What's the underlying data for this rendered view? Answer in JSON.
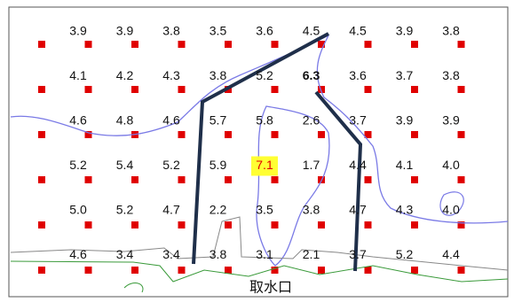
{
  "grid": {
    "rows": [
      [
        "3.9",
        "3.9",
        "3.8",
        "3.5",
        "3.6",
        "4.5",
        "4.5",
        "3.9",
        "3.8"
      ],
      [
        "4.1",
        "4.2",
        "4.3",
        "3.8",
        "5.2",
        "6.3",
        "3.6",
        "3.7",
        "3.8"
      ],
      [
        "4.6",
        "4.8",
        "4.6",
        "5.7",
        "5.8",
        "2.6",
        "3.7",
        "3.9",
        "3.9"
      ],
      [
        "5.2",
        "5.4",
        "5.2",
        "5.9",
        "7.1",
        "1.7",
        "4.4",
        "4.1",
        "4.0"
      ],
      [
        "5.0",
        "5.2",
        "4.7",
        "2.2",
        "3.5",
        "3.8",
        "4.7",
        "4.3",
        "4.0"
      ],
      [
        "4.6",
        "3.4",
        "3.4",
        "3.8",
        "3.1",
        "2.1",
        "3.7",
        "5.2",
        "4.4"
      ]
    ]
  },
  "label": "取水口"
}
